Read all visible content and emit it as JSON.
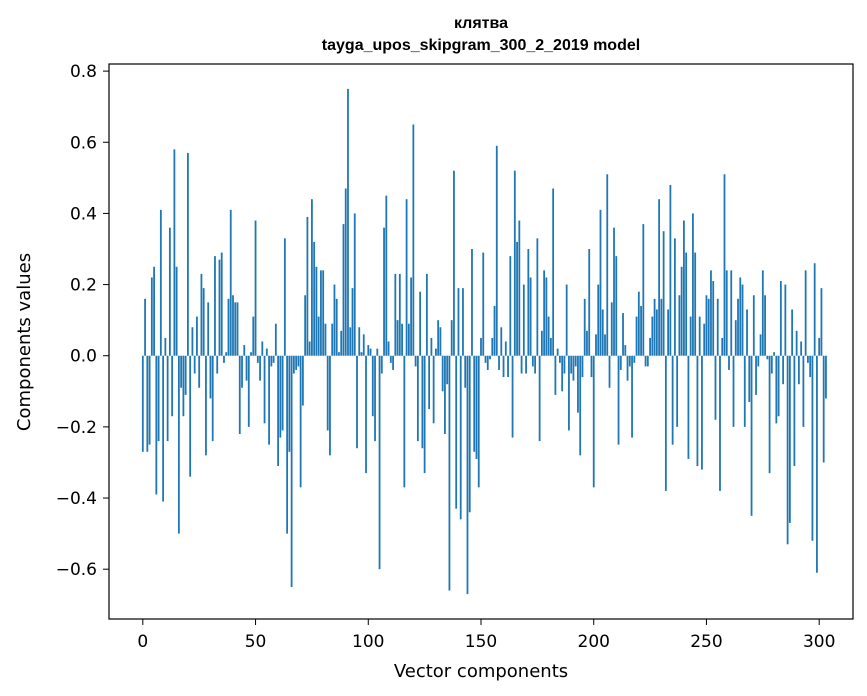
{
  "chart_data": {
    "type": "bar",
    "title": "клятва",
    "subtitle": "tayga_upos_skipgram_300_2_2019 model",
    "xlabel": "Vector components",
    "ylabel": "Components values",
    "xlim": [
      -15,
      315
    ],
    "ylim": [
      -0.74,
      0.82
    ],
    "xticks": [
      0,
      50,
      100,
      150,
      200,
      250,
      300
    ],
    "xtick_labels": [
      "0",
      "50",
      "100",
      "150",
      "200",
      "250",
      "300"
    ],
    "yticks": [
      -0.6,
      -0.4,
      -0.2,
      0.0,
      0.2,
      0.4,
      0.6,
      0.8
    ],
    "ytick_labels": [
      "−0.6",
      "−0.4",
      "−0.2",
      "0.0",
      "0.2",
      "0.4",
      "0.6",
      "0.8"
    ],
    "bar_color": "#1f77b4",
    "grid": false,
    "values": [
      -0.27,
      0.16,
      -0.27,
      -0.25,
      0.22,
      0.25,
      -0.39,
      -0.24,
      0.41,
      -0.41,
      0.05,
      -0.24,
      0.36,
      -0.17,
      0.58,
      0.25,
      -0.5,
      -0.09,
      -0.17,
      -0.11,
      0.57,
      -0.34,
      0.08,
      -0.05,
      0.11,
      -0.09,
      0.23,
      0.19,
      -0.28,
      0.15,
      -0.12,
      -0.24,
      0.28,
      -0.05,
      0.27,
      0.29,
      -0.02,
      0.01,
      0.16,
      0.41,
      0.17,
      0.15,
      0.15,
      -0.22,
      -0.09,
      0.03,
      -0.07,
      -0.2,
      0.01,
      0.11,
      0.38,
      -0.02,
      -0.07,
      0.04,
      -0.19,
      0.02,
      -0.25,
      -0.03,
      -0.02,
      0.09,
      -0.31,
      -0.23,
      -0.21,
      0.33,
      -0.5,
      -0.27,
      -0.65,
      -0.05,
      -0.04,
      -0.03,
      -0.37,
      -0.14,
      0.17,
      0.39,
      0.04,
      0.44,
      0.32,
      0.25,
      0.11,
      0.24,
      0.24,
      0.09,
      -0.21,
      -0.28,
      0.09,
      0.2,
      0.16,
      0.01,
      0.07,
      0.37,
      0.47,
      0.75,
      0.08,
      0.19,
      0.4,
      -0.26,
      0.08,
      0.01,
      0.06,
      -0.33,
      0.03,
      0.02,
      -0.17,
      -0.24,
      0.02,
      -0.6,
      -0.05,
      0.36,
      0.45,
      0.04,
      -0.02,
      -0.04,
      0.23,
      0.1,
      0.23,
      0.09,
      -0.37,
      0.44,
      0.09,
      0.22,
      0.65,
      -0.03,
      -0.24,
      0.18,
      -0.26,
      -0.33,
      0.23,
      -0.15,
      0.05,
      -0.19,
      0.02,
      0.1,
      0.08,
      -0.1,
      -0.22,
      -0.08,
      -0.66,
      0.1,
      0.52,
      -0.43,
      0.19,
      -0.46,
      0.19,
      -0.09,
      -0.67,
      -0.44,
      0.3,
      -0.27,
      -0.29,
      -0.37,
      0.05,
      0.29,
      -0.02,
      -0.04,
      -0.01,
      0.05,
      0.14,
      0.59,
      -0.04,
      0.08,
      -0.06,
      0.04,
      -0.06,
      0.28,
      -0.23,
      0.52,
      0.32,
      0.38,
      -0.05,
      0.2,
      -0.05,
      0.3,
      0.22,
      -0.03,
      -0.05,
      0.33,
      -0.24,
      0.07,
      0.24,
      0.22,
      0.11,
      0.05,
      0.47,
      -0.11,
      0.02,
      -0.02,
      -0.1,
      -0.05,
      0.2,
      -0.21,
      -0.05,
      -0.07,
      -0.03,
      -0.16,
      -0.28,
      -0.06,
      0.16,
      0.07,
      0.3,
      -0.06,
      -0.37,
      0.06,
      0.2,
      0.41,
      0.13,
      0.06,
      0.51,
      -0.09,
      0.15,
      0.36,
      0.28,
      -0.25,
      -0.04,
      0.12,
      0.03,
      -0.07,
      -0.03,
      -0.23,
      -0.02,
      0.11,
      0.18,
      0.14,
      0.37,
      -0.03,
      -0.03,
      0.05,
      0.11,
      0.16,
      0.13,
      0.44,
      0.16,
      0.35,
      -0.38,
      0.13,
      0.48,
      -0.25,
      0.33,
      -0.2,
      0.17,
      0.25,
      0.38,
      0.29,
      -0.29,
      0.11,
      0.4,
      0.29,
      -0.31,
      0.11,
      -0.32,
      0.09,
      0.17,
      0.16,
      0.24,
      0.21,
      -0.18,
      0.16,
      -0.38,
      0.05,
      0.51,
      0.24,
      -0.04,
      0.24,
      -0.2,
      0.1,
      0.16,
      0.22,
      0.2,
      -0.2,
      0.13,
      -0.13,
      -0.45,
      0.17,
      -0.11,
      -0.03,
      0.06,
      0.24,
      0.17,
      -0.01,
      -0.33,
      -0.05,
      0.01,
      -0.19,
      -0.17,
      0.21,
      -0.08,
      0.2,
      -0.53,
      -0.47,
      0.13,
      -0.31,
      0.07,
      -0.08,
      0.04,
      -0.2,
      0.24,
      -0.02,
      -0.06,
      -0.52,
      0.26,
      -0.61,
      0.05,
      0.19,
      -0.3,
      -0.12
    ]
  }
}
